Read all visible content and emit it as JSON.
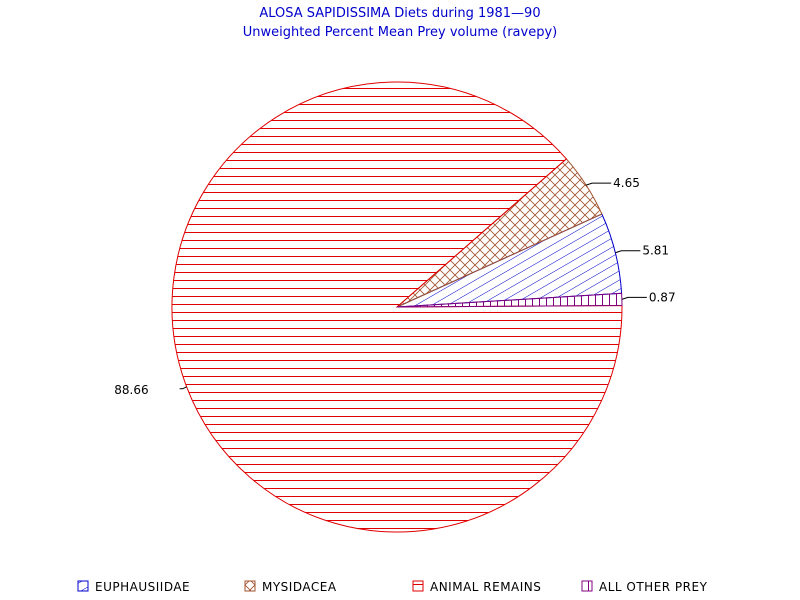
{
  "chart_data": {
    "type": "pie",
    "title": "ALOSA SAPIDISSIMA Diets during 1981—90",
    "subtitle": "Unweighted Percent Mean Prey volume (ravepy)",
    "slices": [
      {
        "name": "EUPHAUSIIDAE",
        "value": 5.81,
        "label": "5.81",
        "color": "#0000cc",
        "pattern": "diagonal"
      },
      {
        "name": "MYSIDACEA",
        "value": 4.65,
        "label": "4.65",
        "color": "#a0522d",
        "pattern": "crosshatch"
      },
      {
        "name": "ANIMAL REMAINS",
        "value": 88.66,
        "label": "88.66",
        "color": "#e00000",
        "pattern": "horizontal"
      },
      {
        "name": "ALL OTHER PREY",
        "value": 0.87,
        "label": "0.87",
        "color": "#800080",
        "pattern": "vertical"
      }
    ],
    "legend": {
      "position": "bottom"
    }
  }
}
